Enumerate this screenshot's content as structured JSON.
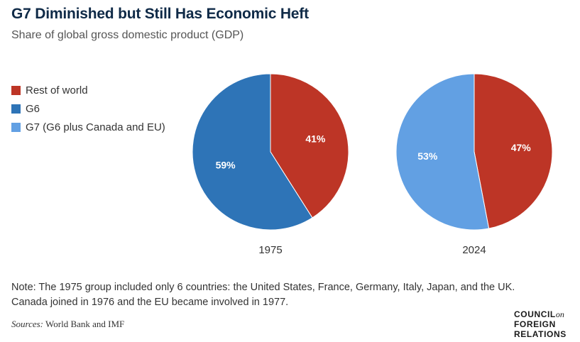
{
  "header": {
    "title": "G7 Diminished but Still Has Economic Heft",
    "subtitle": "Share of global gross domestic product (GDP)"
  },
  "legend": [
    {
      "label": "Rest of world",
      "color": "#bd3526"
    },
    {
      "label": "G6",
      "color": "#2e74b7"
    },
    {
      "label": "G7 (G6 plus Canada and EU)",
      "color": "#62a0e3"
    }
  ],
  "chart_data": [
    {
      "type": "pie",
      "xlabel": "1975",
      "slices": [
        {
          "name": "Rest of world",
          "value": 41,
          "label": "41%",
          "color": "#bd3526"
        },
        {
          "name": "G6",
          "value": 59,
          "label": "59%",
          "color": "#2e74b7"
        }
      ]
    },
    {
      "type": "pie",
      "xlabel": "2024",
      "slices": [
        {
          "name": "Rest of world",
          "value": 47,
          "label": "47%",
          "color": "#bd3526"
        },
        {
          "name": "G7 (G6 plus Canada and EU)",
          "value": 53,
          "label": "53%",
          "color": "#62a0e3"
        }
      ]
    }
  ],
  "footer": {
    "note": "Note: The 1975 group included only 6 countries: the United States, France, Germany, Italy, Japan, and the UK. Canada joined in 1976 and the EU became involved in 1977.",
    "sources_label": "Sources:",
    "sources_text": "World Bank and IMF",
    "logo_line1": "COUNCIL",
    "logo_on": "on",
    "logo_line2": "FOREIGN",
    "logo_line3": "RELATIONS"
  }
}
